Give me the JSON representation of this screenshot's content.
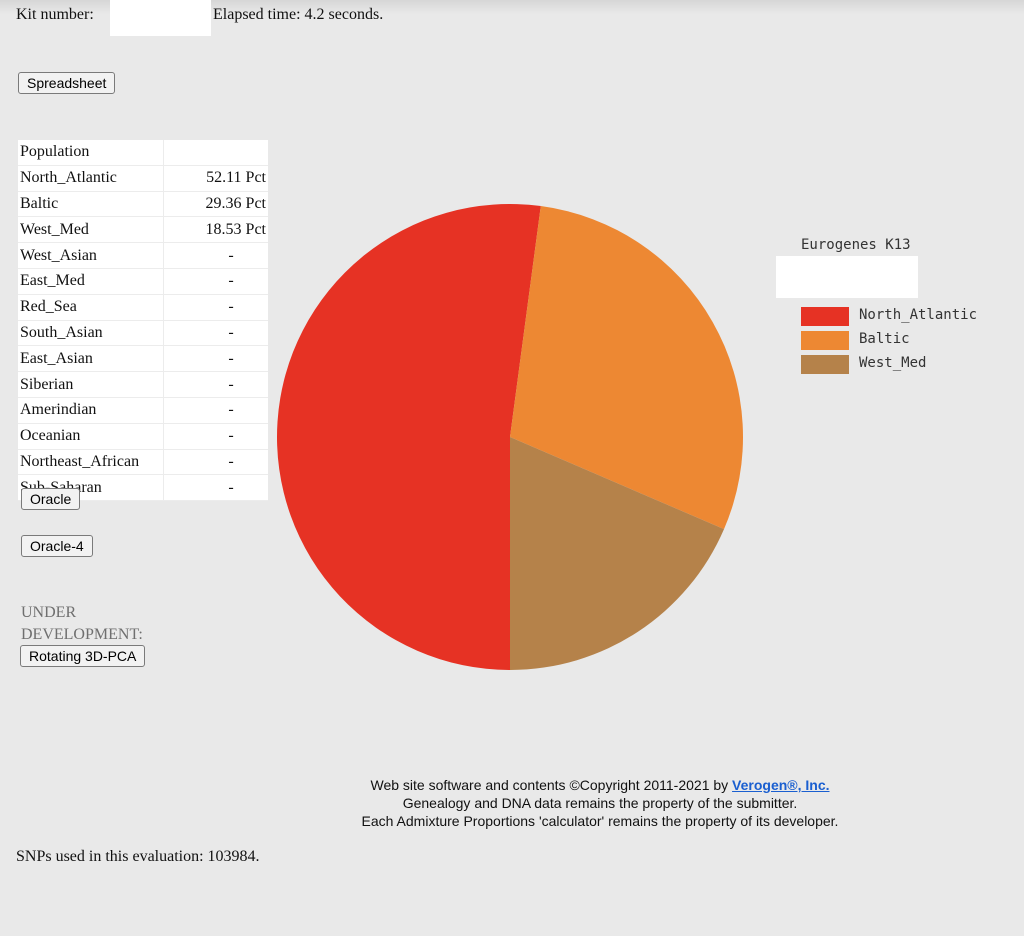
{
  "header": {
    "kit_label": "Kit number:",
    "elapsed_text": "Elapsed time: 4.2 seconds."
  },
  "buttons": {
    "spreadsheet": "Spreadsheet",
    "oracle": "Oracle",
    "oracle4": "Oracle-4",
    "pca": "Rotating 3D-PCA"
  },
  "table": {
    "header": "Population",
    "rows": [
      {
        "name": "North_Atlantic",
        "value": "52.11 Pct"
      },
      {
        "name": "Baltic",
        "value": "29.36 Pct"
      },
      {
        "name": "West_Med",
        "value": "18.53 Pct"
      },
      {
        "name": "West_Asian",
        "value": "-"
      },
      {
        "name": "East_Med",
        "value": "-"
      },
      {
        "name": "Red_Sea",
        "value": "-"
      },
      {
        "name": "South_Asian",
        "value": "-"
      },
      {
        "name": "East_Asian",
        "value": "-"
      },
      {
        "name": "Siberian",
        "value": "-"
      },
      {
        "name": "Amerindian",
        "value": "-"
      },
      {
        "name": "Oceanian",
        "value": "-"
      },
      {
        "name": "Northeast_African",
        "value": "-"
      },
      {
        "name": "Sub-Saharan",
        "value": "-"
      }
    ]
  },
  "under_dev": {
    "line1": "UNDER",
    "line2": "DEVELOPMENT:"
  },
  "chart_data": {
    "type": "pie",
    "title": "Eurogenes K13",
    "labels": [
      "North_Atlantic",
      "Baltic",
      "West_Med"
    ],
    "values": [
      52.11,
      29.36,
      18.53
    ],
    "colors": [
      "#e63224",
      "#ed8833",
      "#b5824a"
    ],
    "legend_position": "right"
  },
  "footer": {
    "line1_prefix": "Web site software and contents ©Copyright 2011-2021 by ",
    "link_text": "Verogen®, Inc.",
    "line2": "Genealogy and DNA data remains the property of the submitter.",
    "line3": "Each Admixture Proportions 'calculator' remains the property of its developer."
  },
  "snps_text": "SNPs used in this evaluation: 103984."
}
